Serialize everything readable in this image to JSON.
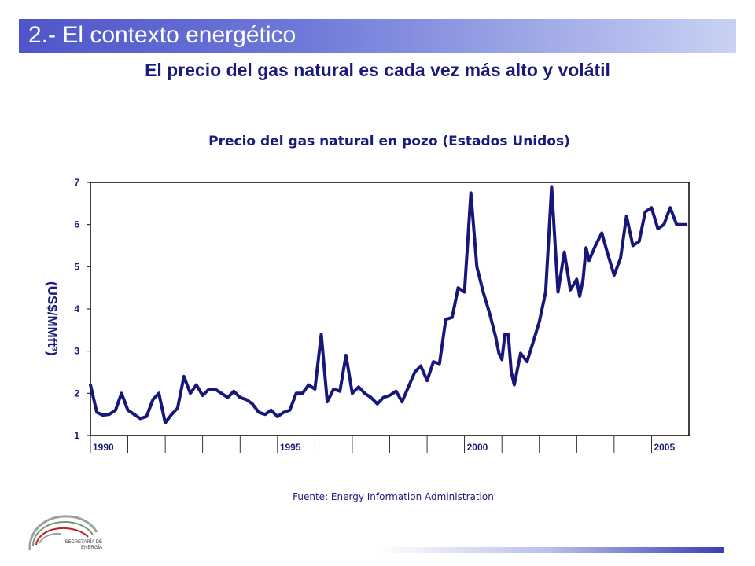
{
  "header": {
    "section_title": "2.- El contexto energético"
  },
  "slide": {
    "headline": "El precio del gas natural es cada vez más alto y volátil"
  },
  "footer": {
    "source": "Fuente: Energy Information Administration",
    "agency_line1": "SECRETARÍA DE",
    "agency_line2": "ENERGÍA"
  },
  "colors": {
    "series": "#17177a",
    "header_start": "#4f55c9",
    "text": "#1a1a7a"
  },
  "chart_data": {
    "type": "line",
    "title": "Precio del gas natural en pozo (Estados Unidos)",
    "ylabel": "(US$/MMft³)",
    "xlabel": "",
    "ylim": [
      1,
      7
    ],
    "xlim": [
      1990,
      2006
    ],
    "y_ticks": [
      1,
      2,
      3,
      4,
      5,
      6,
      7
    ],
    "x_tick_labels": [
      {
        "value": 1990,
        "label": "1990"
      },
      {
        "value": 1995,
        "label": "1995"
      },
      {
        "value": 2000,
        "label": "2000"
      },
      {
        "value": 2005,
        "label": "2005"
      }
    ],
    "x_minor_ticks": [
      1991,
      1992,
      1993,
      1994,
      1996,
      1997,
      1998,
      1999,
      2001,
      2002,
      2003,
      2004
    ],
    "grid": false,
    "series": [
      {
        "x": [
          1990.0,
          1990.17,
          1990.33,
          1990.5,
          1990.67,
          1990.83,
          1991.0,
          1991.17,
          1991.33,
          1991.5,
          1991.67,
          1991.83,
          1992.0,
          1992.17,
          1992.33,
          1992.5,
          1992.67,
          1992.83,
          1993.0,
          1993.17,
          1993.33,
          1993.5,
          1993.67,
          1993.83,
          1994.0,
          1994.17,
          1994.33,
          1994.5,
          1994.67,
          1994.83,
          1995.0,
          1995.17,
          1995.33,
          1995.5,
          1995.67,
          1995.83,
          1996.0,
          1996.17,
          1996.33,
          1996.5,
          1996.67,
          1996.83,
          1997.0,
          1997.17,
          1997.33,
          1997.5,
          1997.67,
          1997.83,
          1998.0,
          1998.17,
          1998.33,
          1998.5,
          1998.67,
          1998.83,
          1999.0,
          1999.17,
          1999.33,
          1999.5,
          1999.67,
          1999.83,
          2000.0,
          2000.17,
          2000.33,
          2000.5,
          2000.67,
          2000.83,
          2000.92,
          2001.0,
          2001.08,
          2001.17,
          2001.25,
          2001.33,
          2001.5,
          2001.67,
          2001.83,
          2002.0,
          2002.17,
          2002.33,
          2002.5,
          2002.67,
          2002.83,
          2003.0,
          2003.08,
          2003.17,
          2003.25,
          2003.33,
          2003.5,
          2003.67,
          2003.83,
          2004.0,
          2004.17,
          2004.33,
          2004.5,
          2004.67,
          2004.83,
          2005.0,
          2005.17,
          2005.33,
          2005.5,
          2005.67,
          2005.83,
          2005.92
        ],
        "y": [
          2.2,
          1.55,
          1.48,
          1.5,
          1.6,
          2.0,
          1.6,
          1.5,
          1.4,
          1.45,
          1.85,
          2.0,
          1.3,
          1.5,
          1.65,
          2.4,
          2.0,
          2.2,
          1.95,
          2.1,
          2.1,
          2.0,
          1.9,
          2.05,
          1.9,
          1.85,
          1.75,
          1.55,
          1.5,
          1.6,
          1.45,
          1.55,
          1.6,
          2.0,
          2.0,
          2.2,
          2.1,
          3.4,
          1.8,
          2.1,
          2.05,
          2.9,
          2.0,
          2.15,
          2.0,
          1.9,
          1.75,
          1.9,
          1.95,
          2.05,
          1.8,
          2.15,
          2.5,
          2.65,
          2.3,
          2.75,
          2.7,
          3.75,
          3.8,
          4.5,
          4.4,
          6.75,
          5.0,
          4.4,
          3.9,
          3.35,
          2.95,
          2.8,
          3.4,
          3.4,
          2.5,
          2.2,
          2.95,
          2.75,
          3.2,
          3.7,
          4.4,
          6.9,
          4.4,
          5.35,
          4.45,
          4.7,
          4.3,
          4.7,
          5.45,
          5.15,
          5.5,
          5.8,
          5.3,
          4.8,
          5.2,
          6.2,
          5.5,
          5.6,
          6.3,
          6.4,
          5.9,
          6.0,
          6.4,
          6.0,
          6.0,
          6.0
        ]
      }
    ]
  }
}
